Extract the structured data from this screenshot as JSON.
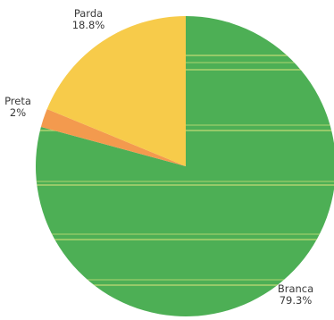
{
  "chart_data": {
    "type": "pie",
    "title": "",
    "start_angle_deg": 0,
    "direction": "clockwise",
    "slices": [
      {
        "label": "Branca",
        "value": 79.3,
        "value_label": "79.3%",
        "color": "#4daf55"
      },
      {
        "label": "Preta",
        "value": 2,
        "value_label": "2%",
        "color": "#f39a4e"
      },
      {
        "label": "Parda",
        "value": 18.8,
        "value_label": "18.8%",
        "color": "#f7cb4a"
      }
    ],
    "texture_color": "#cfe07a"
  }
}
